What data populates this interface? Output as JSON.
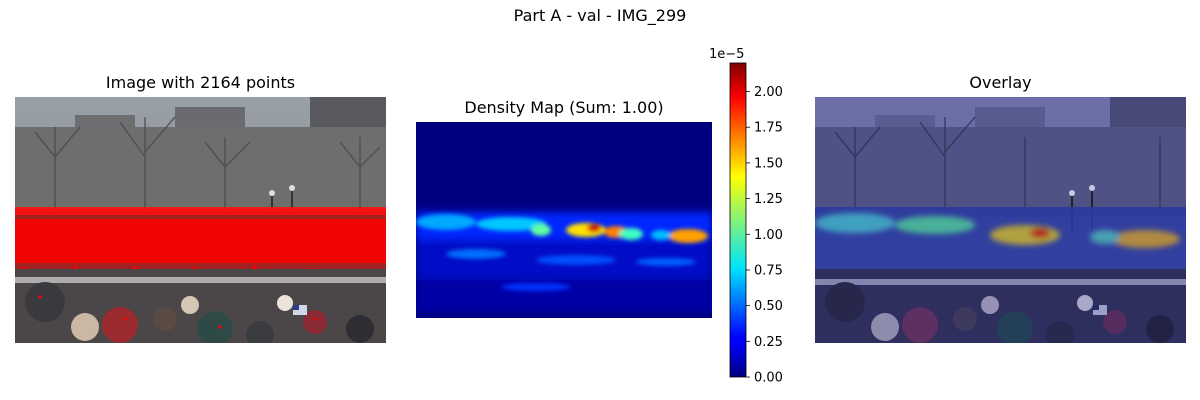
{
  "figure": {
    "suptitle": "Part A - val - IMG_299"
  },
  "panels": {
    "image": {
      "title": "Image with 2164 points"
    },
    "density": {
      "title": "Density Map (Sum: 1.00)"
    },
    "overlay": {
      "title": "Overlay"
    }
  },
  "chart_data": {
    "type": "heatmap",
    "title": "Density Map (Sum: 1.00)",
    "colormap": "jet",
    "colorbar": {
      "exponent_label": "1e−5",
      "range": [
        0.0,
        2.2
      ],
      "ticks": [
        0.0,
        0.25,
        0.5,
        0.75,
        1.0,
        1.25,
        1.5,
        1.75,
        2.0
      ],
      "tick_labels": [
        "0.00",
        "0.25",
        "0.50",
        "0.75",
        "1.00",
        "1.25",
        "1.50",
        "1.75",
        "2.00"
      ]
    },
    "points_count": 2164,
    "density_sum": 1.0
  },
  "colors": {
    "point_color": "#ff0000",
    "jet_low": "#00007f",
    "jet_high": "#7f0000",
    "overlay_tint": "#4b4bb5"
  }
}
